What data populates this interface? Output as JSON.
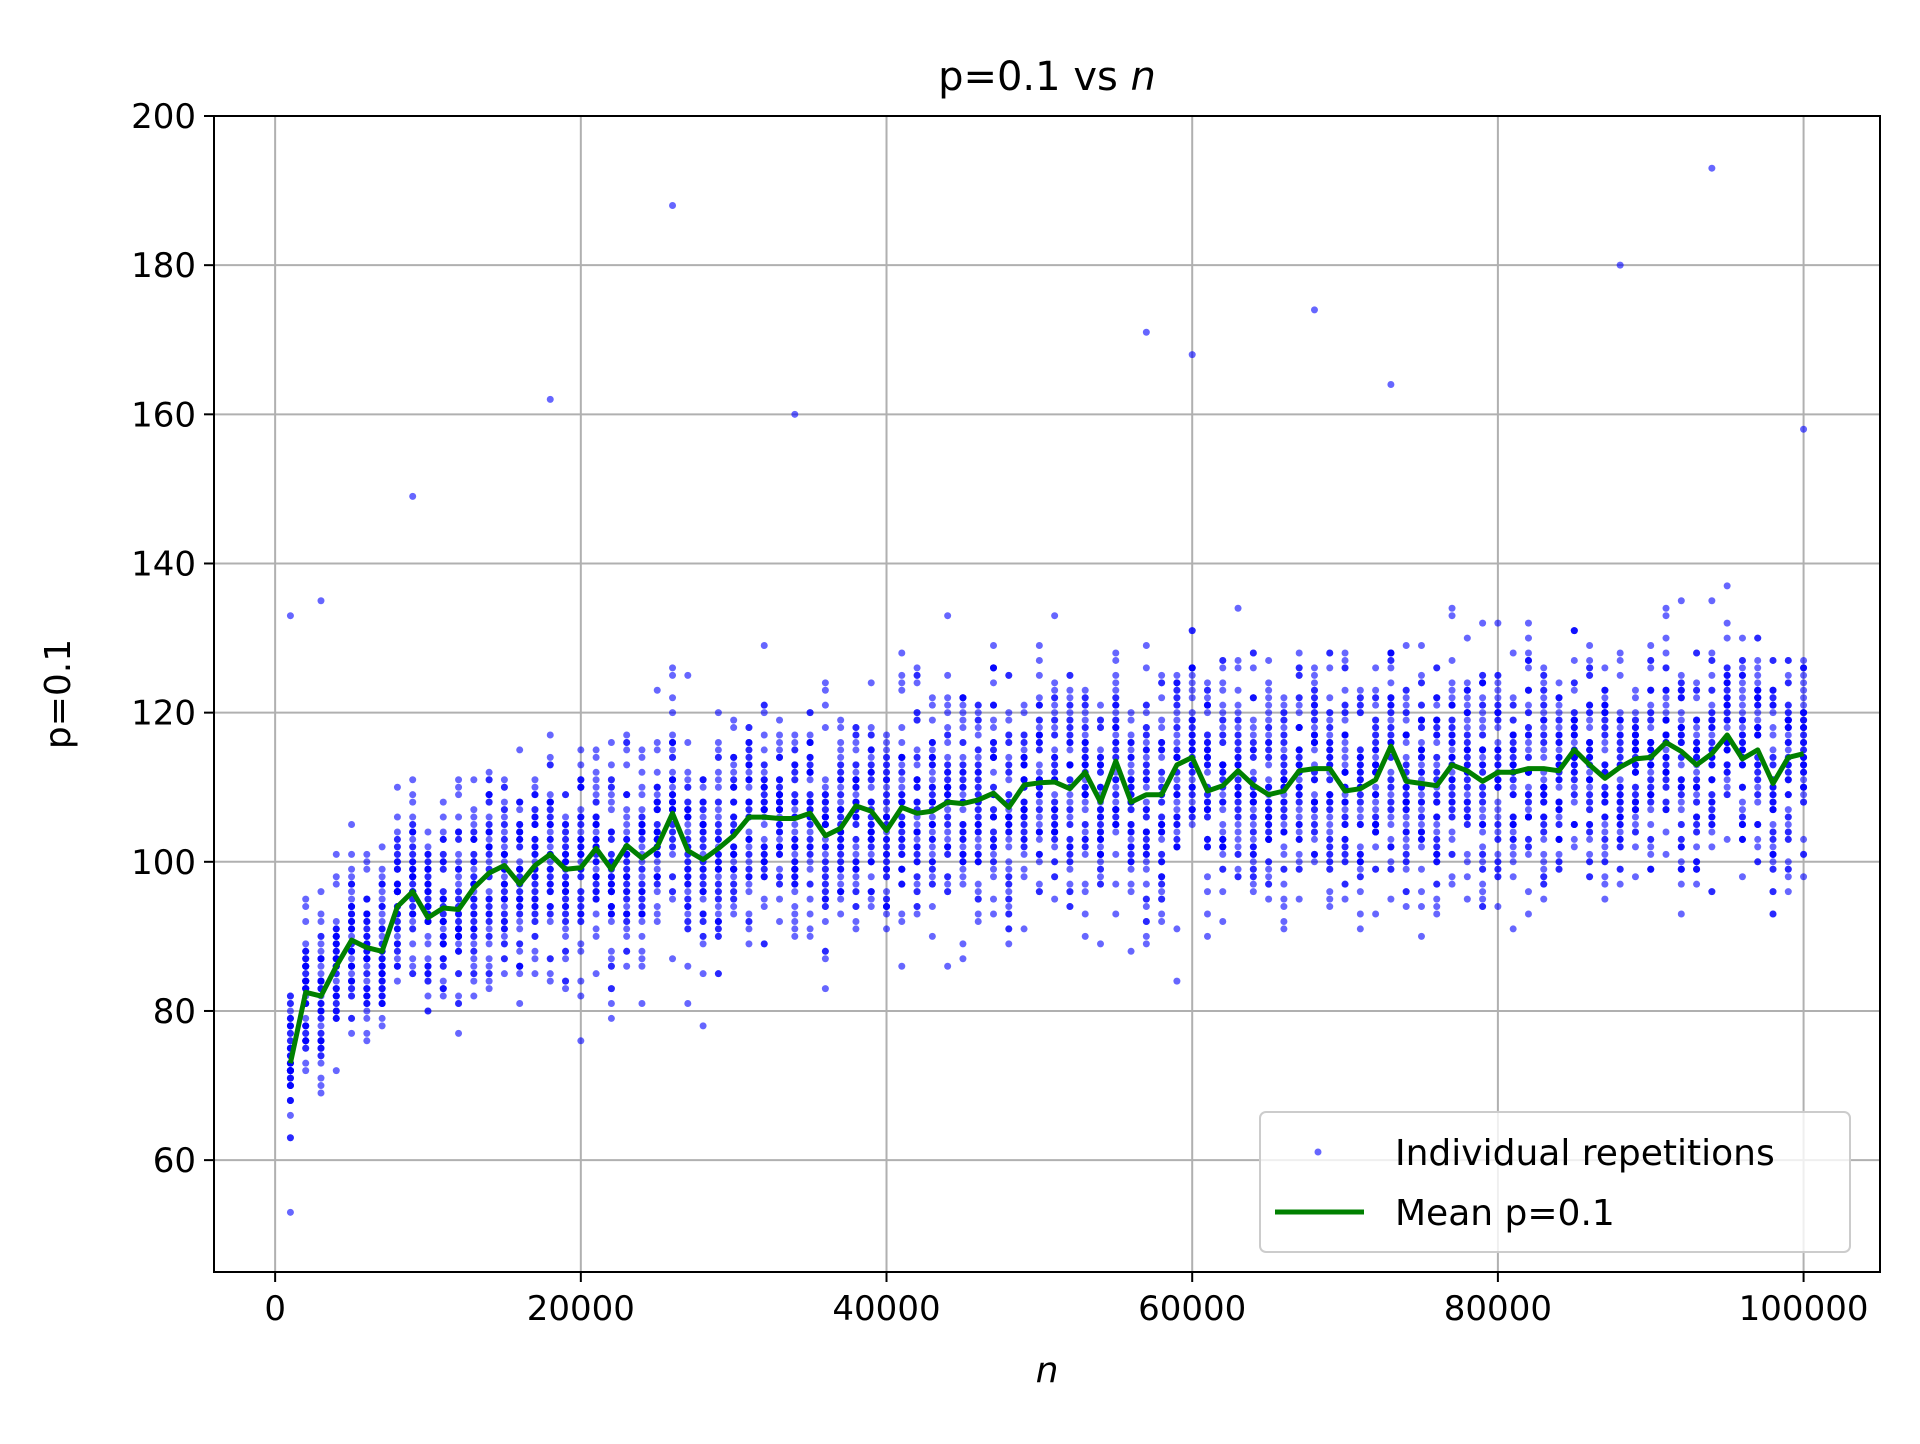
{
  "chart_data": {
    "type": "scatter",
    "title": "p=0.1 vs",
    "title_italic_suffix": "n",
    "xlabel": "n",
    "ylabel": "p=0.1",
    "xlim": [
      -4000,
      105000
    ],
    "ylim": [
      45,
      200
    ],
    "x_ticks": [
      0,
      20000,
      40000,
      60000,
      80000,
      100000
    ],
    "y_ticks": [
      60,
      80,
      100,
      120,
      140,
      160,
      180,
      200
    ],
    "grid": true,
    "legend_position": "lower-right",
    "legend": {
      "scatter_label": "Individual repetitions",
      "line_label": "Mean p=0.1"
    },
    "colors": {
      "scatter": "#0000ff",
      "mean_line": "#008000",
      "grid": "#b0b0b0"
    },
    "series": [
      {
        "name": "Mean p=0.1",
        "kind": "line",
        "x": [
          1000,
          2000,
          3000,
          4000,
          5000,
          6000,
          7000,
          8000,
          9000,
          10000,
          11000,
          12000,
          13000,
          14000,
          15000,
          16000,
          17000,
          18000,
          19000,
          20000,
          21000,
          22000,
          23000,
          24000,
          25000,
          26000,
          27000,
          28000,
          29000,
          30000,
          31000,
          32000,
          33000,
          34000,
          35000,
          36000,
          37000,
          38000,
          39000,
          40000,
          41000,
          42000,
          43000,
          44000,
          45000,
          46000,
          47000,
          48000,
          49000,
          50000,
          51000,
          52000,
          53000,
          54000,
          55000,
          56000,
          57000,
          58000,
          59000,
          60000,
          61000,
          62000,
          63000,
          64000,
          65000,
          66000,
          67000,
          68000,
          69000,
          70000,
          71000,
          72000,
          73000,
          74000,
          75000,
          76000,
          77000,
          78000,
          79000,
          80000,
          81000,
          82000,
          83000,
          84000,
          85000,
          86000,
          87000,
          88000,
          89000,
          90000,
          91000,
          92000,
          93000,
          94000,
          95000,
          96000,
          97000,
          98000,
          99000,
          100000
        ],
        "y": [
          73,
          82.5,
          82,
          86,
          89.5,
          88.5,
          88,
          94,
          96,
          92.5,
          93.8,
          93.6,
          96.5,
          98.5,
          99.5,
          97,
          99.5,
          101,
          99,
          99.2,
          101.8,
          99,
          102.2,
          100.5,
          102,
          106.5,
          101.5,
          100.3,
          101.8,
          103.5,
          106,
          106,
          105.8,
          105.8,
          106.5,
          103.5,
          104.5,
          107.5,
          106.8,
          104.2,
          107.3,
          106.5,
          106.8,
          108,
          107.8,
          108.3,
          109.2,
          107.3,
          110.3,
          110.6,
          110.7,
          109.8,
          112,
          108,
          113.5,
          108,
          109,
          109,
          113,
          114,
          109.5,
          110.2,
          112.2,
          110.3,
          109,
          109.5,
          112.2,
          112.5,
          112.5,
          109.5,
          109.8,
          111,
          115.5,
          110.8,
          110.5,
          110.2,
          113,
          112.2,
          110.8,
          112,
          112,
          112.5,
          112.5,
          112.2,
          115,
          113,
          111.2,
          112.7,
          113.8,
          114,
          116,
          114.8,
          113,
          114.5,
          117,
          113.8,
          115,
          110.5,
          114,
          114.5
        ]
      },
      {
        "name": "Individual repetitions",
        "kind": "scatter",
        "repetitions_per_n": 50,
        "spread": {
          "x": [
            1000,
            5000,
            10000,
            20000,
            30000,
            40000,
            50000,
            60000,
            70000,
            80000,
            90000,
            100000
          ],
          "sd": [
            7,
            8,
            9,
            10,
            10.5,
            11,
            11,
            11,
            11,
            11,
            11,
            11
          ]
        },
        "notable_points": [
          {
            "x": 1000,
            "y": 53
          },
          {
            "x": 1000,
            "y": 133
          },
          {
            "x": 3000,
            "y": 135
          },
          {
            "x": 9000,
            "y": 149
          },
          {
            "x": 18000,
            "y": 162
          },
          {
            "x": 26000,
            "y": 188
          },
          {
            "x": 34000,
            "y": 160
          },
          {
            "x": 57000,
            "y": 171
          },
          {
            "x": 60000,
            "y": 168
          },
          {
            "x": 68000,
            "y": 174
          },
          {
            "x": 73000,
            "y": 164
          },
          {
            "x": 88000,
            "y": 180
          },
          {
            "x": 94000,
            "y": 193
          },
          {
            "x": 100000,
            "y": 158
          },
          {
            "x": 59000,
            "y": 84
          }
        ]
      }
    ]
  }
}
